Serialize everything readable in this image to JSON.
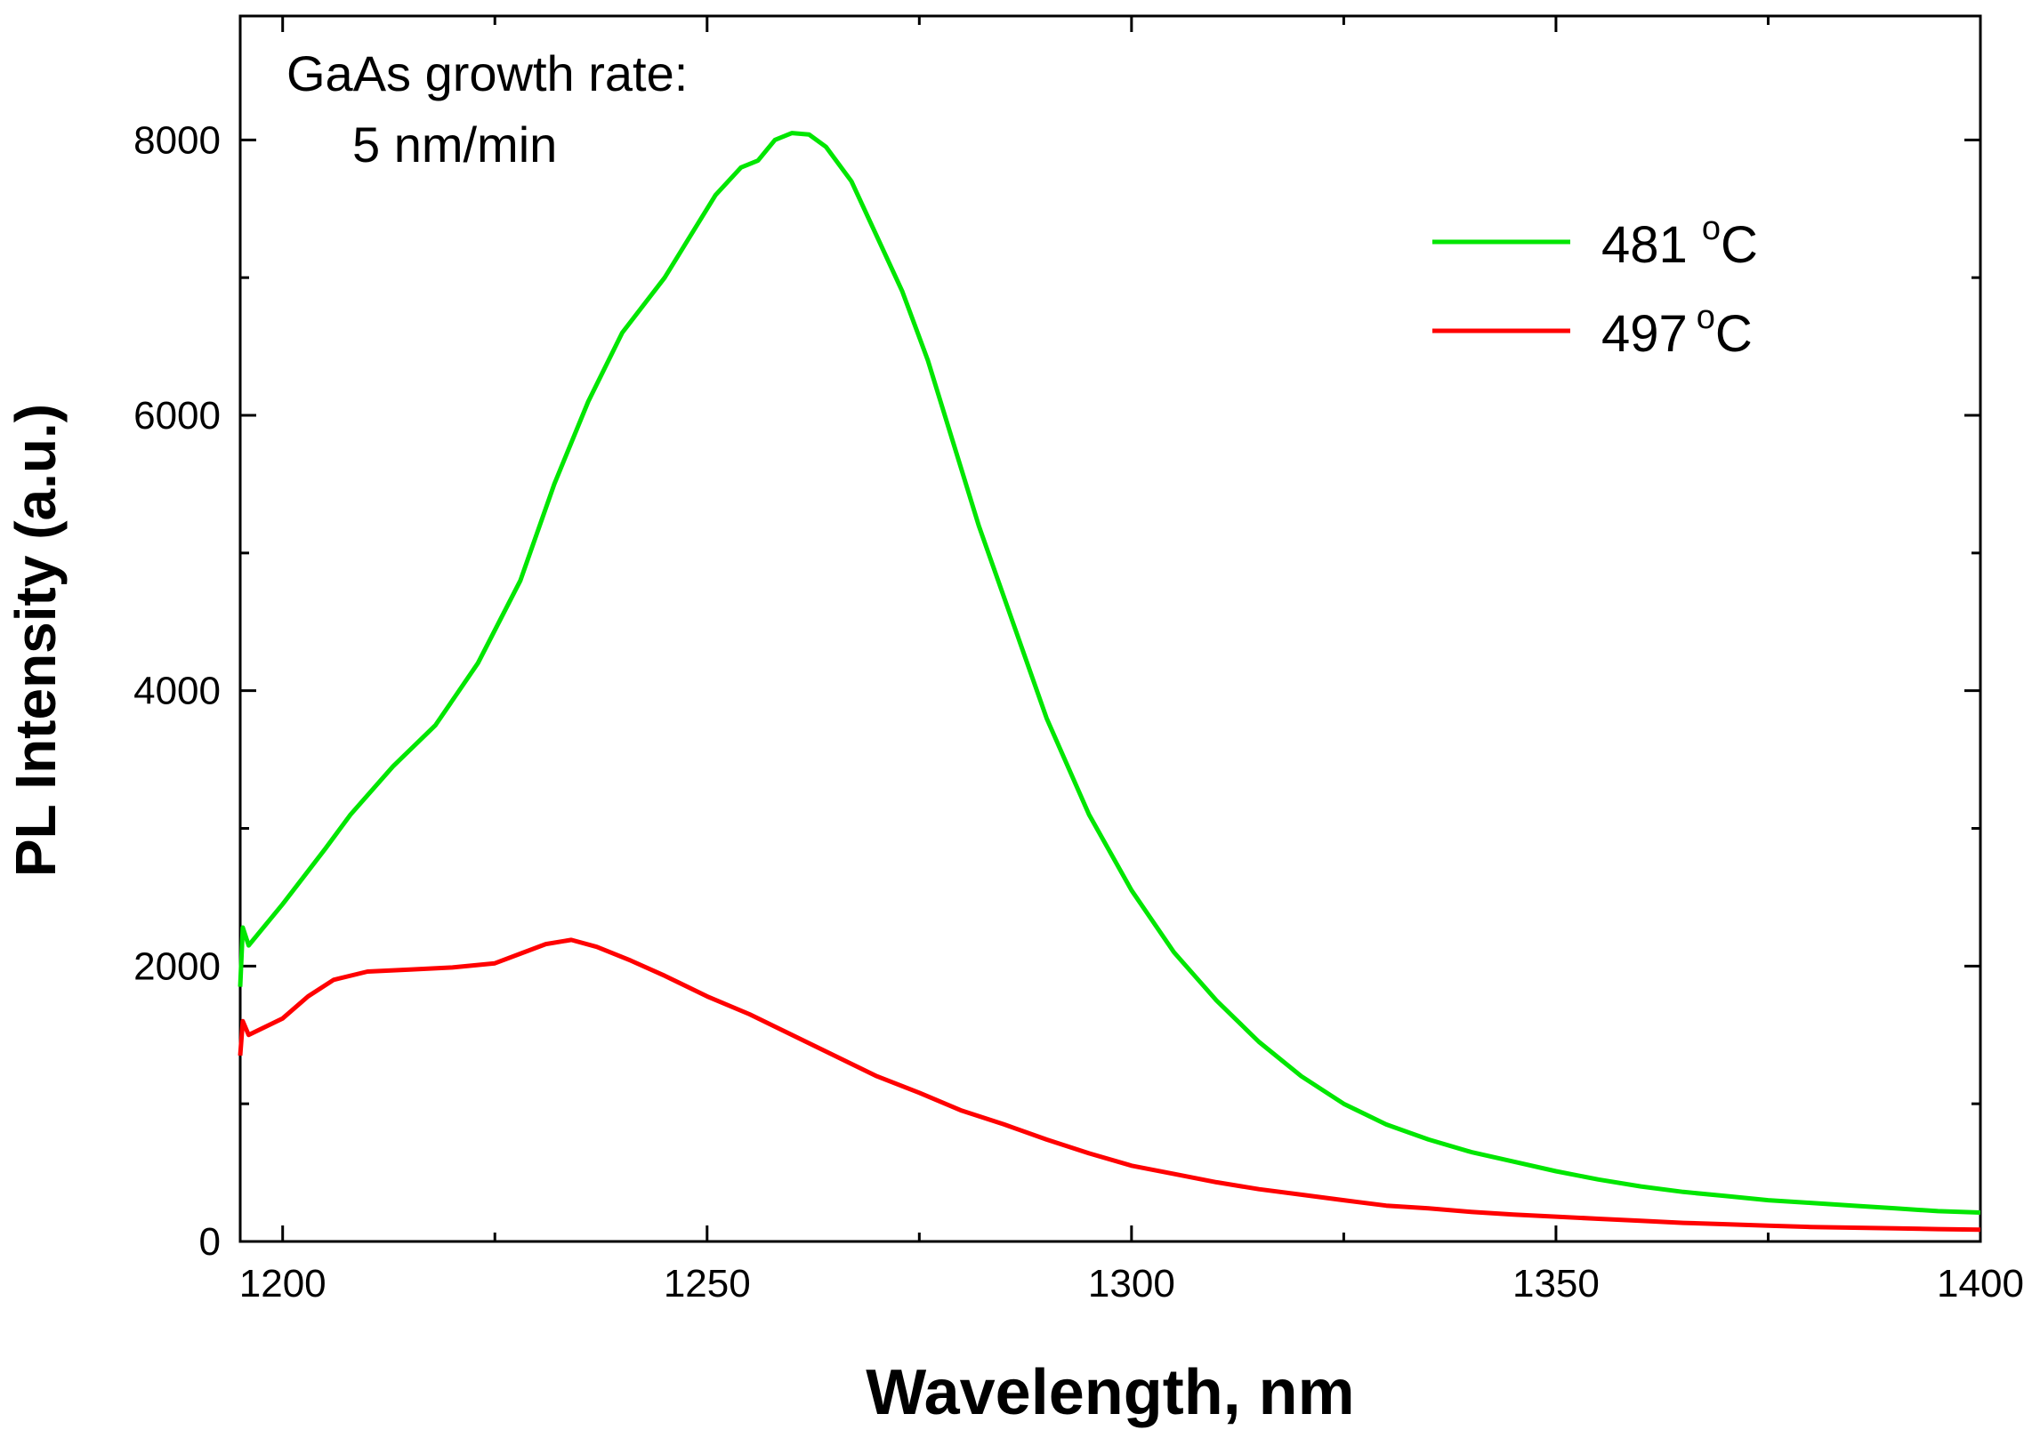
{
  "chart_data": {
    "type": "line",
    "title": "",
    "xlabel": "Wavelength, nm",
    "ylabel": "PL Intensity (a.u.)",
    "xlim": [
      1195,
      1400
    ],
    "ylim": [
      0,
      8900
    ],
    "x_ticks": [
      1200,
      1250,
      1300,
      1350,
      1400
    ],
    "y_ticks": [
      0,
      2000,
      4000,
      6000,
      8000
    ],
    "annotation": {
      "line1": "GaAs growth rate:",
      "line2": "5 nm/min"
    },
    "legend_position": "top-right",
    "series": [
      {
        "name": "481 °C",
        "label_main": "481 ",
        "label_sup": "o",
        "label_unit": "C",
        "color": "#00e600",
        "points": [
          [
            1195,
            1850
          ],
          [
            1195.3,
            2280
          ],
          [
            1196,
            2150
          ],
          [
            1200,
            2450
          ],
          [
            1205,
            2850
          ],
          [
            1208,
            3100
          ],
          [
            1213,
            3450
          ],
          [
            1218,
            3750
          ],
          [
            1223,
            4200
          ],
          [
            1228,
            4800
          ],
          [
            1232,
            5500
          ],
          [
            1236,
            6100
          ],
          [
            1240,
            6600
          ],
          [
            1245,
            7000
          ],
          [
            1248,
            7300
          ],
          [
            1251,
            7600
          ],
          [
            1254,
            7800
          ],
          [
            1256,
            7850
          ],
          [
            1258,
            8000
          ],
          [
            1260,
            8050
          ],
          [
            1262,
            8040
          ],
          [
            1264,
            7950
          ],
          [
            1267,
            7700
          ],
          [
            1270,
            7300
          ],
          [
            1273,
            6900
          ],
          [
            1276,
            6400
          ],
          [
            1279,
            5800
          ],
          [
            1282,
            5200
          ],
          [
            1286,
            4500
          ],
          [
            1290,
            3800
          ],
          [
            1295,
            3100
          ],
          [
            1300,
            2550
          ],
          [
            1305,
            2100
          ],
          [
            1310,
            1750
          ],
          [
            1315,
            1450
          ],
          [
            1320,
            1200
          ],
          [
            1325,
            1000
          ],
          [
            1330,
            850
          ],
          [
            1335,
            740
          ],
          [
            1340,
            650
          ],
          [
            1345,
            580
          ],
          [
            1350,
            510
          ],
          [
            1355,
            450
          ],
          [
            1360,
            400
          ],
          [
            1365,
            360
          ],
          [
            1370,
            330
          ],
          [
            1375,
            300
          ],
          [
            1380,
            280
          ],
          [
            1385,
            260
          ],
          [
            1390,
            240
          ],
          [
            1395,
            220
          ],
          [
            1400,
            210
          ]
        ]
      },
      {
        "name": "497 °C",
        "label_main": "497",
        "label_sup": "o",
        "label_unit": "C",
        "color": "#ff0000",
        "points": [
          [
            1195,
            1350
          ],
          [
            1195.3,
            1600
          ],
          [
            1196,
            1500
          ],
          [
            1200,
            1620
          ],
          [
            1203,
            1780
          ],
          [
            1206,
            1900
          ],
          [
            1210,
            1960
          ],
          [
            1215,
            1975
          ],
          [
            1220,
            1990
          ],
          [
            1225,
            2020
          ],
          [
            1228,
            2090
          ],
          [
            1231,
            2160
          ],
          [
            1234,
            2190
          ],
          [
            1237,
            2140
          ],
          [
            1241,
            2040
          ],
          [
            1245,
            1930
          ],
          [
            1250,
            1780
          ],
          [
            1255,
            1650
          ],
          [
            1260,
            1500
          ],
          [
            1265,
            1350
          ],
          [
            1270,
            1200
          ],
          [
            1275,
            1080
          ],
          [
            1280,
            950
          ],
          [
            1285,
            850
          ],
          [
            1290,
            740
          ],
          [
            1295,
            640
          ],
          [
            1300,
            550
          ],
          [
            1305,
            490
          ],
          [
            1310,
            430
          ],
          [
            1315,
            380
          ],
          [
            1320,
            340
          ],
          [
            1325,
            300
          ],
          [
            1330,
            260
          ],
          [
            1335,
            240
          ],
          [
            1340,
            215
          ],
          [
            1345,
            195
          ],
          [
            1350,
            180
          ],
          [
            1355,
            165
          ],
          [
            1360,
            150
          ],
          [
            1365,
            135
          ],
          [
            1370,
            125
          ],
          [
            1375,
            115
          ],
          [
            1380,
            105
          ],
          [
            1385,
            100
          ],
          [
            1390,
            95
          ],
          [
            1395,
            90
          ],
          [
            1400,
            85
          ]
        ]
      }
    ]
  }
}
